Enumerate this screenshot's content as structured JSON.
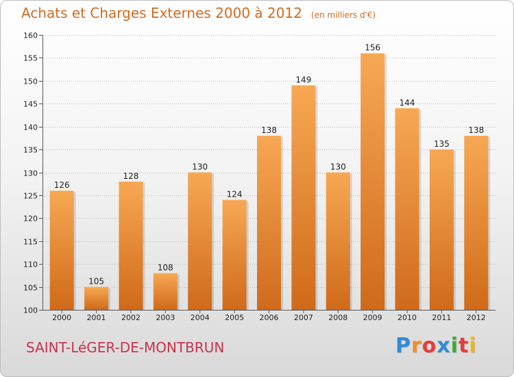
{
  "title": "Achats et Charges Externes 2000 à 2012",
  "subtitle": "(en milliers d'€)",
  "commune": "SAINT-LéGER-DE-MONTBRUN",
  "logo": {
    "letters": [
      "P",
      "r",
      "o",
      "x",
      "i",
      "t",
      "i"
    ],
    "colors": [
      "#2e8bd6",
      "#f28c28",
      "#e73c3c",
      "#2e8bd6",
      "#3aaa35",
      "#e73c3c",
      "#f2b705"
    ]
  },
  "colors": {
    "bar_top": "#f7a853",
    "bar_bottom": "#cf6a1a",
    "accent": "#d2691e"
  },
  "chart_data": {
    "type": "bar",
    "categories": [
      "2000",
      "2001",
      "2002",
      "2003",
      "2004",
      "2005",
      "2006",
      "2007",
      "2008",
      "2009",
      "2010",
      "2011",
      "2012"
    ],
    "values": [
      126,
      105,
      128,
      108,
      130,
      124,
      138,
      149,
      130,
      156,
      144,
      135,
      138
    ],
    "title": "Achats et Charges Externes 2000 à 2012",
    "ylim": [
      100,
      160
    ],
    "yticks": [
      100,
      105,
      110,
      115,
      120,
      125,
      130,
      135,
      140,
      145,
      150,
      155,
      160
    ],
    "grid": true
  }
}
